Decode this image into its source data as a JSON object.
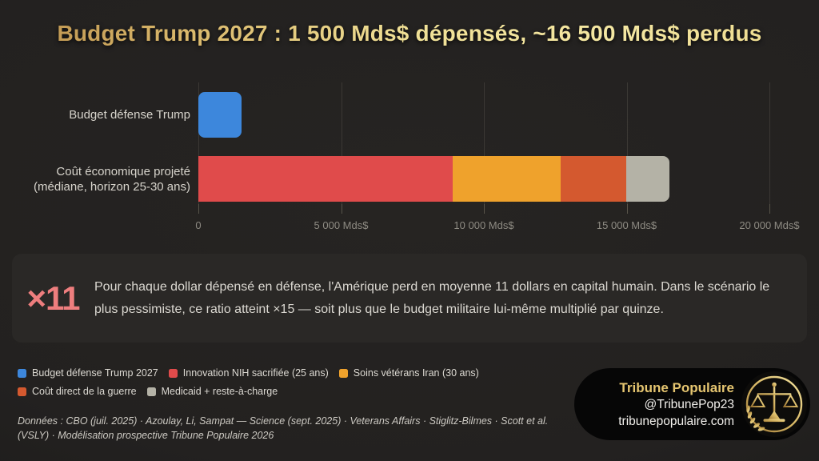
{
  "title": "Budget Trump 2027 : 1 500 Mds$ dépensés, ~16 500 Mds$ perdus",
  "colors": {
    "background": "#232120",
    "title_gold": "#e8cc7c",
    "blue": "#3d87dc",
    "red": "#e04b4b",
    "orange": "#efa22c",
    "dark_orange": "#d4592f",
    "gray": "#b4b2a6",
    "callout_accent": "#ee7e7e",
    "badge_gold": "#e5c570"
  },
  "chart_data": {
    "type": "bar",
    "orientation": "horizontal",
    "unit": "Mds$",
    "grid": true,
    "x_axis": {
      "min": 0,
      "max": 21500,
      "ticks": [
        {
          "value": 0,
          "label": "0"
        },
        {
          "value": 5000,
          "label": "5 000 Mds$"
        },
        {
          "value": 10000,
          "label": "10 000 Mds$"
        },
        {
          "value": 15000,
          "label": "15 000 Mds$"
        },
        {
          "value": 20000,
          "label": "20 000 Mds$"
        }
      ]
    },
    "rows": [
      {
        "label_lines": [
          "Budget défense Trump"
        ],
        "total": 1500,
        "segments": [
          {
            "name": "Budget défense Trump 2027",
            "value": 1500,
            "color": "#3d87dc"
          }
        ]
      },
      {
        "label_lines": [
          "Coût économique projeté",
          "(médiane, horizon 25-30 ans)"
        ],
        "total": 16500,
        "segments": [
          {
            "name": "Innovation NIH sacrifiée (25 ans)",
            "value": 8900,
            "color": "#e04b4b"
          },
          {
            "name": "Soins vétérans Iran (30 ans)",
            "value": 3800,
            "color": "#efa22c"
          },
          {
            "name": "Coût direct de la guerre",
            "value": 2300,
            "color": "#d4592f"
          },
          {
            "name": "Medicaid + reste-à-charge",
            "value": 1500,
            "color": "#b4b2a6"
          }
        ]
      }
    ]
  },
  "callout": {
    "multiplier": "×11",
    "text": "Pour chaque dollar dépensé en défense, l'Amérique perd en moyenne 11 dollars en capital humain. Dans le scénario le plus pessimiste, ce ratio atteint ×15 — soit plus que le budget militaire lui-même multiplié par quinze."
  },
  "legend": {
    "rows": [
      [
        {
          "label": "Budget défense Trump 2027",
          "color": "#3d87dc"
        },
        {
          "label": "Innovation NIH sacrifiée (25 ans)",
          "color": "#e04b4b"
        },
        {
          "label": "Soins vétérans Iran (30 ans)",
          "color": "#efa22c"
        }
      ],
      [
        {
          "label": "Coût direct de la guerre",
          "color": "#d4592f"
        },
        {
          "label": "Medicaid + reste-à-charge",
          "color": "#b4b2a6"
        }
      ]
    ]
  },
  "source": "Données : CBO (juil. 2025) · Azoulay, Li, Sampat — Science (sept. 2025) · Veterans Affairs · Stiglitz-Bilmes · Scott et al. (VSLY) · Modélisation prospective Tribune Populaire 2026",
  "branding": {
    "name": "Tribune Populaire",
    "handle": "@TribunePop23",
    "website": "tribunepopulaire.com",
    "logo_icon": "scales-of-justice-icon"
  }
}
